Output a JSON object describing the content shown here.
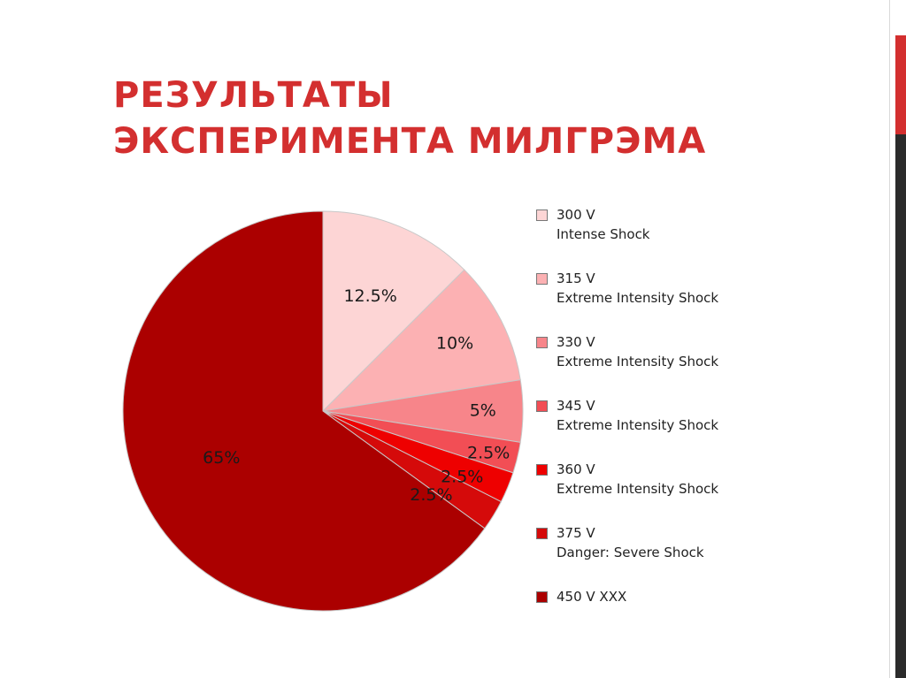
{
  "slide": {
    "title_lines": [
      "РЕЗУЛЬТАТЫ",
      "ЭКСПЕРИМЕНТА МИЛГРЭМА"
    ],
    "colors": {
      "title": "#d32f2f",
      "accent_bar": "#d32f2f",
      "accent_bar_dark": "#2b2b2b"
    }
  },
  "chart_data": {
    "type": "pie",
    "start_angle_deg": 0,
    "direction": "clockwise",
    "slices": [
      {
        "label": "12.5%",
        "value": 12.5,
        "legend": [
          "300 V",
          "Intense Shock"
        ],
        "color": "#fdd5d5"
      },
      {
        "label": "10%",
        "value": 10,
        "legend": [
          "315 V",
          "Extreme Intensity Shock"
        ],
        "color": "#fcb1b3"
      },
      {
        "label": "5%",
        "value": 5,
        "legend": [
          "330 V",
          "Extreme Intensity Shock"
        ],
        "color": "#f7858a"
      },
      {
        "label": "2.5%",
        "value": 2.5,
        "legend": [
          "345 V",
          "Extreme Intensity Shock"
        ],
        "color": "#f24e55"
      },
      {
        "label": "2.5%",
        "value": 2.5,
        "legend": [
          "360 V",
          "Extreme Intensity Shock"
        ],
        "color": "#ee0000"
      },
      {
        "label": "2.5%",
        "value": 2.5,
        "legend": [
          "375 V",
          "Danger: Severe Shock"
        ],
        "color": "#d50a0a"
      },
      {
        "label": "65%",
        "value": 65,
        "legend": [
          "450 V XXX"
        ],
        "color": "#ab0000"
      }
    ]
  }
}
